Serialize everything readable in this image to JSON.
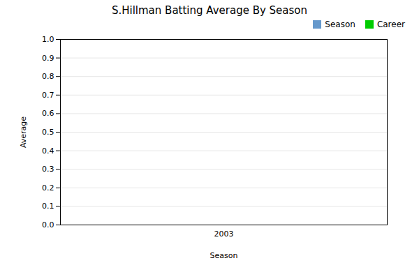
{
  "chart_data": {
    "type": "bar",
    "title": "S.Hillman Batting Average By Season",
    "xlabel": "Season",
    "ylabel": "Average",
    "categories": [
      "2003"
    ],
    "series": [
      {
        "name": "Season",
        "color": "#6699cc",
        "values": [
          0.0
        ]
      },
      {
        "name": "Career",
        "color": "#00cc00",
        "values": [
          0.0
        ]
      }
    ],
    "ylim": [
      0.0,
      1.0
    ],
    "yticks": [
      {
        "value": 0.0,
        "label": "0.0"
      },
      0.1,
      0.2,
      0.3,
      0.4,
      0.5,
      0.6,
      0.7,
      0.8,
      0.9,
      {
        "value": 1.0,
        "label": "1.0"
      }
    ],
    "grid": true,
    "legend": "upper right"
  }
}
